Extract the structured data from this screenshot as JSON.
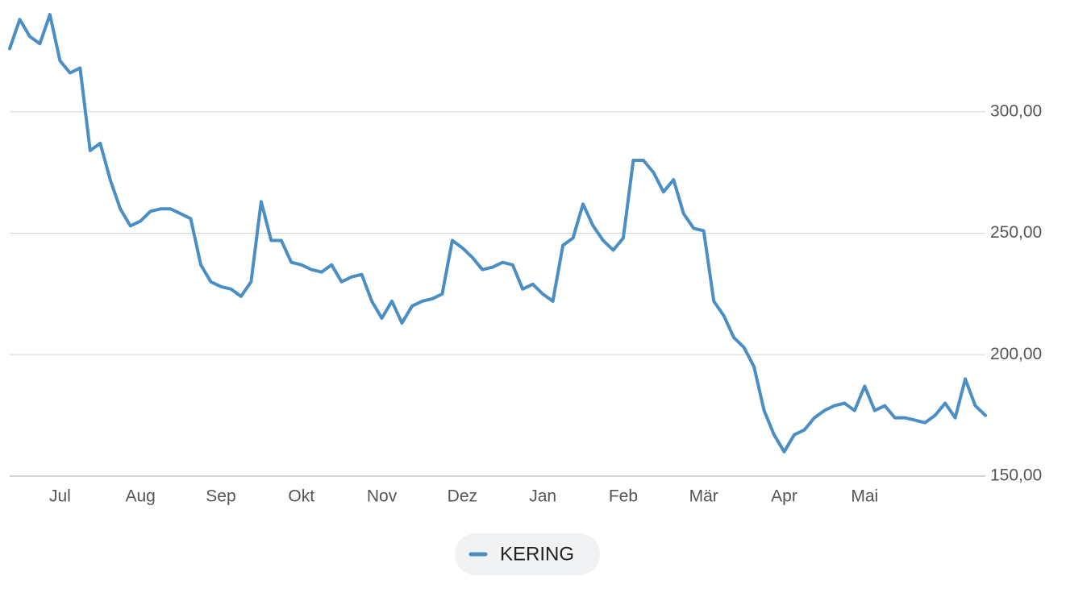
{
  "chart_data": {
    "type": "line",
    "categories": [
      null,
      null,
      null,
      null,
      null,
      "Jul",
      null,
      null,
      null,
      null,
      null,
      null,
      null,
      "Aug",
      null,
      null,
      null,
      null,
      null,
      null,
      null,
      "Sep",
      null,
      null,
      null,
      null,
      null,
      null,
      null,
      "Okt",
      null,
      null,
      null,
      null,
      null,
      null,
      null,
      "Nov",
      null,
      null,
      null,
      null,
      null,
      null,
      null,
      "Dez",
      null,
      null,
      null,
      null,
      null,
      null,
      null,
      "Jan",
      null,
      null,
      null,
      null,
      null,
      null,
      null,
      "Feb",
      null,
      null,
      null,
      null,
      null,
      null,
      null,
      "Mär",
      null,
      null,
      null,
      null,
      null,
      null,
      null,
      "Apr",
      null,
      null,
      null,
      null,
      null,
      null,
      null,
      "Mai",
      null,
      null,
      null,
      null,
      null,
      null,
      null,
      null,
      null,
      null,
      null,
      null
    ],
    "series": [
      {
        "name": "KERING",
        "color": "#4a8ec4",
        "values": [
          326,
          338,
          331,
          328,
          340,
          321,
          316,
          318,
          284,
          287,
          272,
          260,
          253,
          255,
          259,
          260,
          260,
          258,
          256,
          237,
          230,
          228,
          227,
          224,
          230,
          263,
          247,
          247,
          238,
          237,
          235,
          234,
          237,
          230,
          232,
          233,
          222,
          215,
          222,
          213,
          220,
          222,
          223,
          225,
          247,
          244,
          240,
          235,
          236,
          238,
          237,
          227,
          229,
          225,
          222,
          245,
          248,
          262,
          253,
          247,
          243,
          248,
          280,
          280,
          275,
          267,
          272,
          258,
          252,
          251,
          222,
          216,
          207,
          203,
          195,
          177,
          167,
          160,
          167,
          169,
          174,
          177,
          179,
          180,
          177,
          187,
          177,
          179,
          174,
          174,
          173,
          172,
          175,
          180,
          174,
          190,
          179,
          175
        ]
      }
    ],
    "ylim": [
      150,
      346
    ],
    "yticks": [
      {
        "value": 150,
        "label": "150,00"
      },
      {
        "value": 200,
        "label": "200,00"
      },
      {
        "value": 250,
        "label": "250,00"
      },
      {
        "value": 300,
        "label": "300,00"
      }
    ],
    "grid": true
  }
}
